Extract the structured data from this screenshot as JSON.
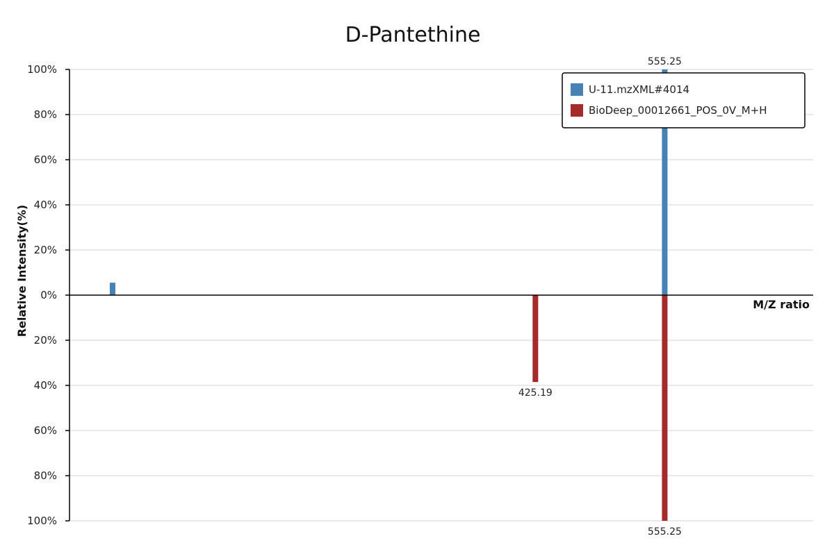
{
  "chart_data": {
    "type": "bar",
    "title": "D-Pantethine",
    "xlabel": "M/Z ratio",
    "ylabel": "Relative Intensity(%)",
    "grid": true,
    "legend_position": "top-right",
    "ylim_top": [
      0,
      100
    ],
    "ylim_bottom": [
      0,
      100
    ],
    "y_ticks_top": [
      "100%",
      "80%",
      "60%",
      "40%",
      "20%",
      "0%"
    ],
    "y_ticks_bottom": [
      "20%",
      "40%",
      "60%",
      "80%",
      "100%"
    ],
    "series": [
      {
        "name": "U-11.mzXML#4014",
        "color": "#4682b4",
        "direction": "up",
        "peaks": [
          {
            "mz": 0,
            "intensity": 5.5,
            "label": ""
          },
          {
            "mz": 555.25,
            "intensity": 100,
            "label": "555.25"
          }
        ]
      },
      {
        "name": "BioDeep_00012661_POS_0V_M+H",
        "color": "#a52a2a",
        "direction": "down",
        "peaks": [
          {
            "mz": 425.19,
            "intensity": 38.5,
            "label": "425.19"
          },
          {
            "mz": 555.25,
            "intensity": 100,
            "label": "555.25"
          }
        ]
      }
    ]
  }
}
